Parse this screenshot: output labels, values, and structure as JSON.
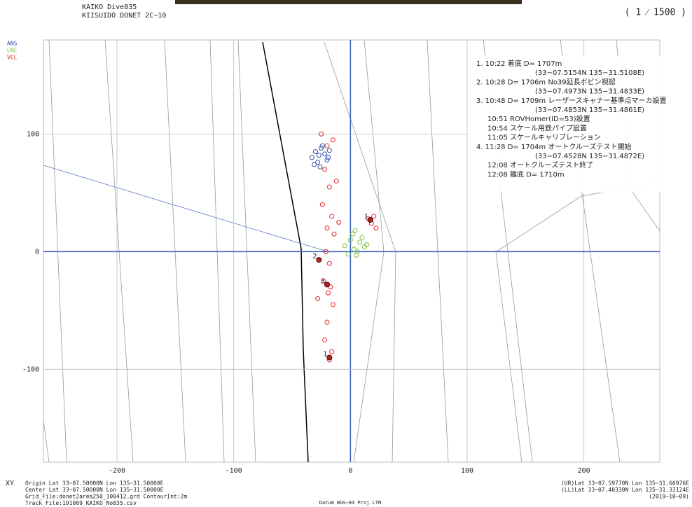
{
  "chart_data": {
    "type": "scatter",
    "header": [
      "KAIKO Dive835",
      "KIISUIDO DONET 2C−10"
    ],
    "scale": "( 1   ⁄ 1500 )",
    "xlim": [
      -263,
      265
    ],
    "ylim": [
      -179,
      180
    ],
    "xticks": [
      -200,
      -100,
      0,
      100,
      200
    ],
    "yticks": [
      -100,
      0,
      100
    ],
    "grid": true,
    "series": [
      {
        "name": "ANS",
        "color": "#2b4fa8",
        "x": [
          -33,
          -30,
          -28,
          -25,
          -22,
          -20,
          -18,
          -26,
          -31,
          -24,
          -19,
          -27
        ],
        "y": [
          80,
          85,
          76,
          88,
          83,
          78,
          86,
          72,
          74,
          90,
          80,
          82
        ]
      },
      {
        "name": "LNC",
        "color": "#7cc242",
        "x": [
          -5,
          0,
          3,
          5,
          8,
          10,
          12,
          2,
          -2,
          6,
          14,
          4
        ],
        "y": [
          5,
          10,
          2,
          -3,
          8,
          12,
          4,
          15,
          -2,
          0,
          6,
          18
        ]
      },
      {
        "name": "VCL",
        "color": "#e8262a",
        "x": [
          -25,
          -20,
          -15,
          -22,
          -18,
          -12,
          -24,
          -16,
          -20,
          -14,
          -21,
          -18,
          -23,
          -17,
          -19,
          -15,
          -20,
          -22,
          -16,
          -18,
          15,
          18,
          20,
          22,
          -10,
          -28
        ],
        "y": [
          100,
          90,
          95,
          70,
          55,
          60,
          40,
          30,
          20,
          15,
          0,
          -10,
          -25,
          -30,
          -35,
          -45,
          -60,
          -75,
          -85,
          -92,
          28,
          24,
          30,
          20,
          25,
          -40
        ]
      }
    ],
    "markers": [
      {
        "label": "1",
        "x": 17,
        "y": 27
      },
      {
        "label": "2",
        "x": -27,
        "y": -7
      },
      {
        "label": "3",
        "x": -20,
        "y": -28
      },
      {
        "label": "1",
        "x": -18,
        "y": -90
      }
    ],
    "notes": [
      "1. 10:22 着底 D= 1707m",
      "(33−07.5154N 135−31.5108E)",
      "2. 10:28 D= 1706m No39延長ボビン視認",
      "(33−07.4973N 135−31.4833E)",
      "3. 10:48 D= 1709m レーザースキャナー基準点マーカ設置",
      "(33−07.4853N 135−31.4861E)",
      "10:51        ROVHomer(ID=53)設置",
      "10:54        スケール用鉄パイプ設置",
      "11:05        スケールキャリブレーション",
      "4. 11:28 D= 1704m オートクルーズテスト開始",
      "(33−07.4528N 135−31.4872E)",
      "12:08        オートクルーズテスト終了",
      "12:08 離底 D= 1710m"
    ],
    "xy_label": "XY",
    "footer_left": [
      "Origin Lat 33−07.50000N Lon 135−31.50000E",
      "Center Lat 33−07.50000N Lon 135−31.50000E",
      "Grid_File:donet2area250_100412.grd ContourInt:2m",
      "Track_File:191009_KAIKO_No835.csv"
    ],
    "datum": "Datum WGS−84 Proj.LTM",
    "footer_right": [
      "(UR)Lat 33−07.59770N Lon 135−31.66976E",
      "(LL)Lat 33−07.40330N Lon 135−31.33124E",
      "(2019−10−09)"
    ]
  }
}
